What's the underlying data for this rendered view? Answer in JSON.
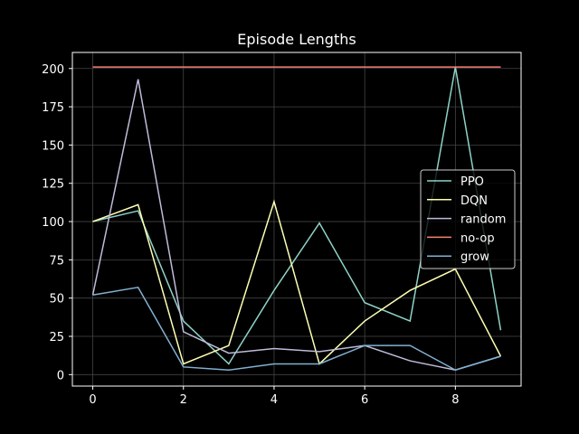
{
  "chart_data": {
    "type": "line",
    "title": "Episode Lengths",
    "xlabel": "",
    "ylabel": "",
    "xlim": [
      -0.45,
      9.45
    ],
    "ylim": [
      -7.5,
      210.5
    ],
    "xticks": [
      0,
      2,
      4,
      6,
      8
    ],
    "yticks": [
      0,
      25,
      50,
      75,
      100,
      125,
      150,
      175,
      200
    ],
    "grid": true,
    "legend_position": "right",
    "x": [
      0,
      1,
      2,
      3,
      4,
      5,
      6,
      7,
      8,
      9
    ],
    "series": [
      {
        "name": "PPO",
        "color": "#8dd3c7",
        "values": [
          100,
          107,
          35,
          7,
          55,
          99,
          47,
          35,
          201,
          29
        ]
      },
      {
        "name": "DQN",
        "color": "#feffb3",
        "values": [
          100,
          111,
          7,
          19,
          113,
          7,
          35,
          55,
          69,
          12
        ]
      },
      {
        "name": "random",
        "color": "#bfbbd9",
        "values": [
          52,
          193,
          28,
          14,
          17,
          15,
          19,
          9,
          3,
          12
        ]
      },
      {
        "name": "no-op",
        "color": "#fa8174",
        "values": [
          201,
          201,
          201,
          201,
          201,
          201,
          201,
          201,
          201,
          201
        ]
      },
      {
        "name": "grow",
        "color": "#81b1d2",
        "values": [
          52,
          57,
          5,
          3,
          7,
          7,
          19,
          19,
          3,
          12
        ]
      }
    ]
  },
  "style": {
    "background": "#000000",
    "axes_color": "#ffffff",
    "grid_color": "#444444"
  }
}
